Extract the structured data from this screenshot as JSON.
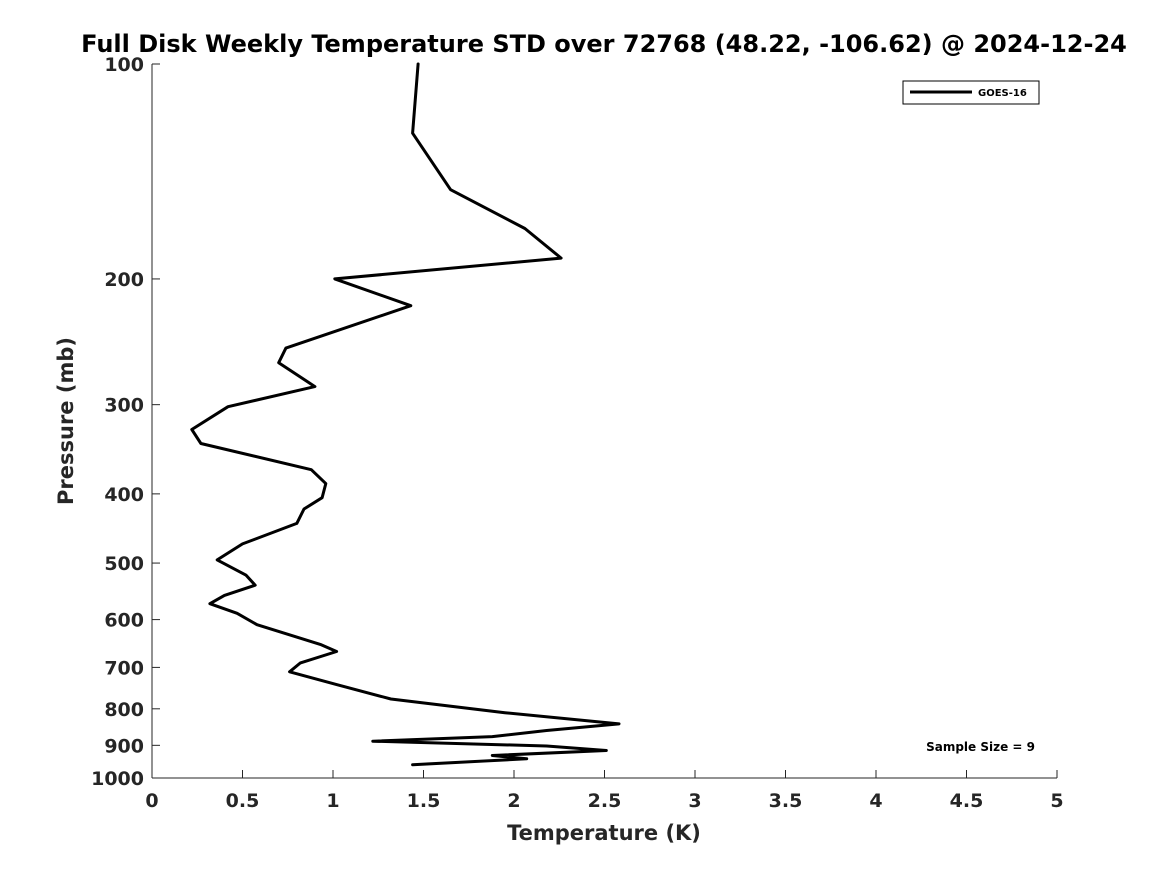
{
  "chart_data": {
    "type": "line",
    "title": "Full Disk Weekly Temperature STD over 72768 (48.22, -106.62) @ 2024-12-24",
    "xlabel": "Temperature (K)",
    "ylabel": "Pressure (mb)",
    "xlim": [
      0,
      5
    ],
    "ylim": [
      1000,
      100
    ],
    "y_scale": "log",
    "x_ticks": [
      0,
      0.5,
      1,
      1.5,
      2,
      2.5,
      3,
      3.5,
      4,
      4.5,
      5
    ],
    "x_tick_labels": [
      "0",
      "0.5",
      "1",
      "1.5",
      "2",
      "2.5",
      "3",
      "3.5",
      "4",
      "4.5",
      "5"
    ],
    "y_ticks": [
      100,
      200,
      300,
      400,
      500,
      600,
      700,
      800,
      900,
      1000
    ],
    "y_tick_labels": [
      "100",
      "200",
      "300",
      "400",
      "500",
      "600",
      "700",
      "800",
      "900",
      "1000"
    ],
    "grid": false,
    "legend_position": "top-right",
    "annotation": "Sample Size = 9",
    "series": [
      {
        "name": "GOES-16",
        "color": "#000000",
        "points": [
          [
            1.47,
            100
          ],
          [
            1.44,
            125
          ],
          [
            1.65,
            150
          ],
          [
            2.06,
            170
          ],
          [
            2.26,
            187
          ],
          [
            1.01,
            200
          ],
          [
            1.43,
            218
          ],
          [
            0.74,
            250
          ],
          [
            0.7,
            262
          ],
          [
            0.9,
            283
          ],
          [
            0.42,
            302
          ],
          [
            0.22,
            325
          ],
          [
            0.27,
            340
          ],
          [
            0.88,
            370
          ],
          [
            0.96,
            387
          ],
          [
            0.94,
            405
          ],
          [
            0.84,
            420
          ],
          [
            0.8,
            440
          ],
          [
            0.5,
            470
          ],
          [
            0.36,
            495
          ],
          [
            0.52,
            520
          ],
          [
            0.57,
            537
          ],
          [
            0.4,
            555
          ],
          [
            0.32,
            570
          ],
          [
            0.47,
            588
          ],
          [
            0.58,
            610
          ],
          [
            0.93,
            650
          ],
          [
            1.02,
            665
          ],
          [
            0.82,
            690
          ],
          [
            0.76,
            710
          ],
          [
            1.02,
            740
          ],
          [
            1.32,
            775
          ],
          [
            1.95,
            810
          ],
          [
            2.58,
            840
          ],
          [
            2.18,
            858
          ],
          [
            1.88,
            875
          ],
          [
            1.22,
            888
          ],
          [
            2.18,
            902
          ],
          [
            2.51,
            915
          ],
          [
            1.88,
            930
          ],
          [
            2.07,
            940
          ],
          [
            1.44,
            958
          ]
        ]
      }
    ]
  }
}
